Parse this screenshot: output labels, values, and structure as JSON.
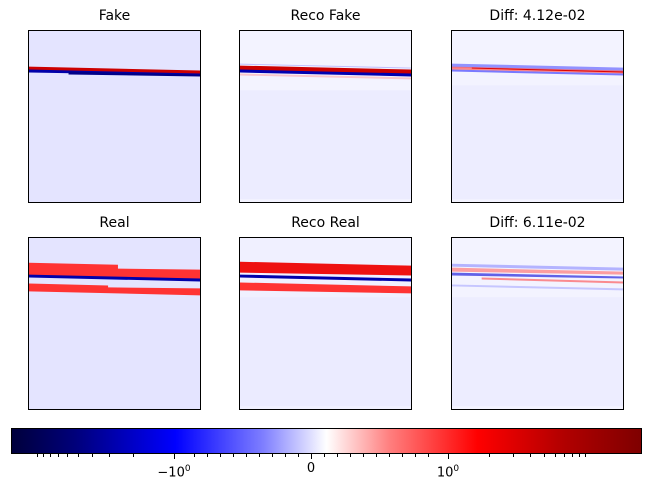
{
  "chart_data": [
    {
      "type": "heatmap",
      "title": "Fake"
    },
    {
      "type": "heatmap",
      "title": "Reco Fake"
    },
    {
      "type": "heatmap",
      "title": "Diff: 4.12e-02"
    },
    {
      "type": "heatmap",
      "title": "Real"
    },
    {
      "type": "heatmap",
      "title": "Reco Real"
    },
    {
      "type": "heatmap",
      "title": "Diff: 6.11e-02"
    }
  ],
  "colorbar": {
    "colormap": "seismic",
    "scale": "symlog",
    "colors": {
      "low": "#00003c",
      "mid": "#ffffff",
      "high": "#7f0000"
    },
    "tick_labels": [
      {
        "base": "−10",
        "exp": "0"
      },
      {
        "base": "0",
        "exp": ""
      },
      {
        "base": "10",
        "exp": "0"
      }
    ]
  }
}
